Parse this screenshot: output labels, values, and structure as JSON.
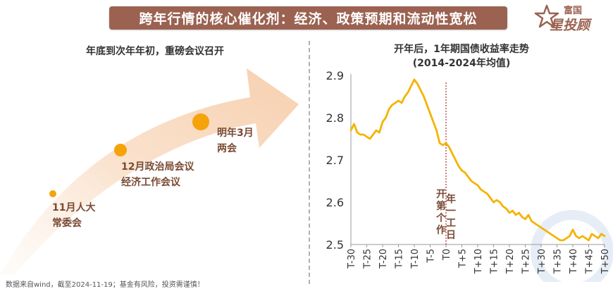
{
  "header": {
    "title": "跨年行情的核心催化剂：经济、政策预期和流动性宽松"
  },
  "logo": {
    "line1": "富国",
    "line2": "星投顾",
    "brand_color": "#9b6251"
  },
  "left_panel": {
    "title": "年底到次年年初，重磅会议召开",
    "arrow_color": "#f7d3b6",
    "dot_color": "#f5a30a",
    "events": [
      {
        "line1": "11月人大",
        "line2": "常委会",
        "size": "small"
      },
      {
        "line1": "12月政治局会议",
        "line2": "经济工作会议",
        "size": "medium"
      },
      {
        "line1": "明年3月",
        "line2": "两会",
        "size": "large"
      }
    ]
  },
  "right_panel": {
    "title_line1": "开年后，1年期国债收益率走势",
    "title_line2": "(2014-2024年均值)"
  },
  "chart_data": {
    "type": "line",
    "title": "开年后，1年期国债收益率走势",
    "subtitle": "(2014-2024年均值)",
    "xlabel": "",
    "ylabel": "",
    "ylim": [
      2.5,
      2.9
    ],
    "yticks": [
      2.5,
      2.6,
      2.7,
      2.8,
      2.9
    ],
    "xticks": [
      "T-30",
      "T-25",
      "T-20",
      "T-15",
      "T-10",
      "T-5",
      "T0",
      "T+5",
      "T+10",
      "T+15",
      "T+20",
      "T+25",
      "T+30",
      "T+35",
      "T+40",
      "T+45",
      "T+50"
    ],
    "line_color": "#f5b301",
    "grid": false,
    "marker": {
      "x": 0,
      "label": "开年第一个工作日",
      "color": "#b0302a"
    },
    "series": [
      {
        "x": [
          -30,
          -29,
          -28,
          -27,
          -26,
          -25,
          -24,
          -23,
          -22,
          -21,
          -20,
          -19,
          -18,
          -17,
          -16,
          -15,
          -14,
          -13,
          -12,
          -11,
          -10,
          -9,
          -8,
          -7,
          -6,
          -5,
          -4,
          -3,
          -2,
          -1,
          0,
          1,
          2,
          3,
          4,
          5,
          6,
          7,
          8,
          9,
          10,
          11,
          12,
          13,
          14,
          15,
          16,
          17,
          18,
          19,
          20,
          21,
          22,
          23,
          24,
          25,
          26,
          27,
          28,
          29,
          30,
          31,
          32,
          33,
          34,
          35,
          36,
          37,
          38,
          39,
          40,
          41,
          42,
          43,
          44,
          45,
          46,
          47,
          48,
          49,
          50
        ],
        "values": [
          2.77,
          2.785,
          2.765,
          2.76,
          2.76,
          2.755,
          2.75,
          2.76,
          2.77,
          2.765,
          2.79,
          2.8,
          2.82,
          2.83,
          2.835,
          2.84,
          2.835,
          2.85,
          2.86,
          2.875,
          2.89,
          2.88,
          2.865,
          2.85,
          2.83,
          2.81,
          2.79,
          2.77,
          2.74,
          2.735,
          2.74,
          2.73,
          2.715,
          2.7,
          2.685,
          2.675,
          2.67,
          2.66,
          2.65,
          2.645,
          2.64,
          2.63,
          2.625,
          2.62,
          2.61,
          2.6,
          2.605,
          2.6,
          2.59,
          2.585,
          2.575,
          2.58,
          2.57,
          2.575,
          2.565,
          2.56,
          2.57,
          2.555,
          2.55,
          2.545,
          2.54,
          2.535,
          2.53,
          2.525,
          2.52,
          2.515,
          2.51,
          2.51,
          2.515,
          2.52,
          2.535,
          2.52,
          2.515,
          2.52,
          2.515,
          2.51,
          2.525,
          2.52,
          2.515,
          2.525,
          2.52
        ]
      }
    ]
  },
  "footnote": "数据来自wind，截至2024-11-19；基金有风险，投资需谨慎！"
}
